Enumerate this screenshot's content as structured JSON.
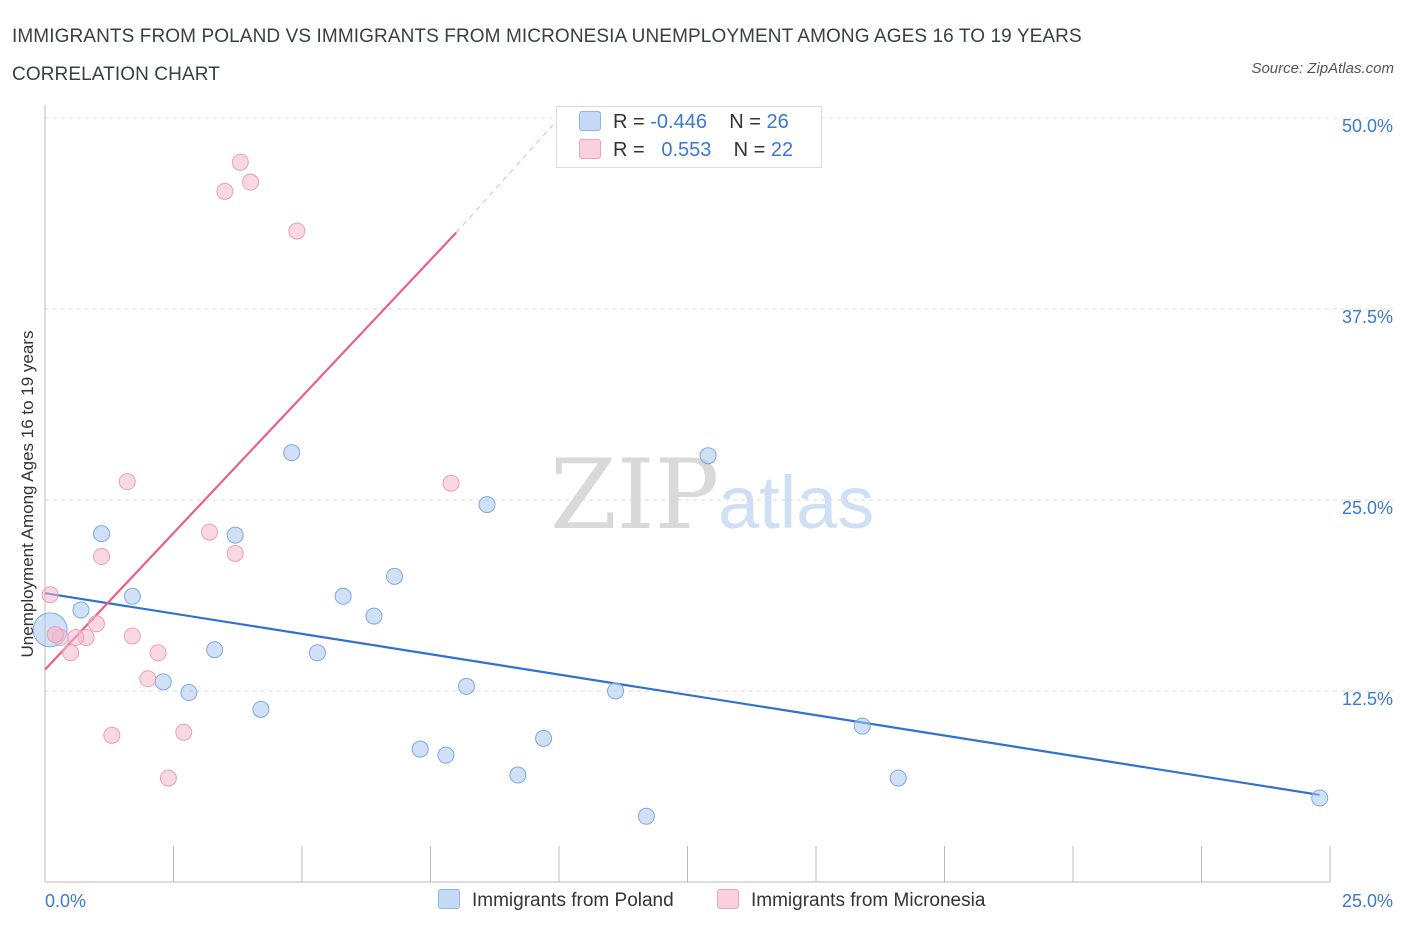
{
  "title": "IMMIGRANTS FROM POLAND VS IMMIGRANTS FROM MICRONESIA UNEMPLOYMENT AMONG AGES 16 TO 19 YEARS CORRELATION CHART",
  "source": "Source: ZipAtlas.com",
  "watermark": {
    "zip": "ZIP",
    "atlas": "atlas"
  },
  "legend": {
    "rows": [
      {
        "r_label": "R =",
        "r_value": "-0.446",
        "n_label": "N =",
        "n_value": "26",
        "color": "#a9c8f0"
      },
      {
        "r_label": "R =",
        "r_value": "0.553",
        "n_label": "N =",
        "n_value": "22",
        "color": "#f6b8c9"
      }
    ]
  },
  "chart_data": {
    "type": "scatter",
    "title": "IMMIGRANTS FROM POLAND VS IMMIGRANTS FROM MICRONESIA UNEMPLOYMENT AMONG AGES 16 TO 19 YEARS CORRELATION CHART",
    "xlabel": "",
    "ylabel": "Unemployment Among Ages 16 to 19 years",
    "xlim": [
      0,
      25
    ],
    "ylim": [
      0,
      50
    ],
    "x_tick_labels": [
      "0.0%",
      "25.0%"
    ],
    "y_ticks": [
      12.5,
      25,
      37.5,
      50
    ],
    "y_tick_labels": [
      "12.5%",
      "25.0%",
      "37.5%",
      "50.0%"
    ],
    "grid": true,
    "series": [
      {
        "name": "Immigrants from Poland",
        "color": "#a9c8f0",
        "line_color": "#3070d0",
        "points": [
          [
            0.1,
            16.5
          ],
          [
            0.7,
            17.8
          ],
          [
            1.1,
            22.8
          ],
          [
            1.7,
            18.7
          ],
          [
            2.3,
            13.1
          ],
          [
            2.8,
            12.4
          ],
          [
            3.3,
            15.2
          ],
          [
            3.7,
            22.7
          ],
          [
            4.2,
            11.3
          ],
          [
            4.8,
            28.1
          ],
          [
            5.3,
            15.0
          ],
          [
            5.8,
            18.7
          ],
          [
            6.4,
            17.4
          ],
          [
            6.8,
            20.0
          ],
          [
            7.3,
            8.7
          ],
          [
            7.8,
            8.3
          ],
          [
            8.2,
            12.8
          ],
          [
            8.6,
            24.7
          ],
          [
            9.2,
            7.0
          ],
          [
            9.7,
            9.4
          ],
          [
            11.1,
            12.5
          ],
          [
            11.7,
            4.3
          ],
          [
            12.9,
            27.9
          ],
          [
            15.9,
            10.2
          ],
          [
            16.6,
            6.8
          ],
          [
            24.8,
            5.5
          ]
        ],
        "trend": {
          "x": [
            0,
            24.8
          ],
          "y": [
            18.9,
            5.7
          ]
        }
      },
      {
        "name": "Immigrants from Micronesia",
        "color": "#f6b8c9",
        "line_color": "#e8608a",
        "points": [
          [
            0.1,
            18.8
          ],
          [
            0.3,
            16.0
          ],
          [
            0.5,
            15.0
          ],
          [
            0.8,
            16.0
          ],
          [
            1.0,
            16.9
          ],
          [
            1.1,
            21.3
          ],
          [
            1.3,
            9.6
          ],
          [
            1.6,
            26.2
          ],
          [
            1.7,
            16.1
          ],
          [
            2.0,
            13.3
          ],
          [
            2.2,
            15.0
          ],
          [
            2.4,
            6.8
          ],
          [
            2.7,
            9.8
          ],
          [
            3.2,
            22.9
          ],
          [
            3.5,
            45.2
          ],
          [
            3.7,
            21.5
          ],
          [
            3.8,
            47.1
          ],
          [
            4.0,
            45.8
          ],
          [
            4.9,
            42.6
          ],
          [
            7.9,
            26.1
          ],
          [
            0.2,
            16.2
          ],
          [
            0.6,
            16.0
          ]
        ],
        "trend": {
          "x": [
            0,
            8.0
          ],
          "y": [
            13.9,
            42.5
          ]
        },
        "trend_extension": {
          "x": [
            8.0,
            10.0
          ],
          "y": [
            42.5,
            50.0
          ]
        }
      }
    ]
  }
}
